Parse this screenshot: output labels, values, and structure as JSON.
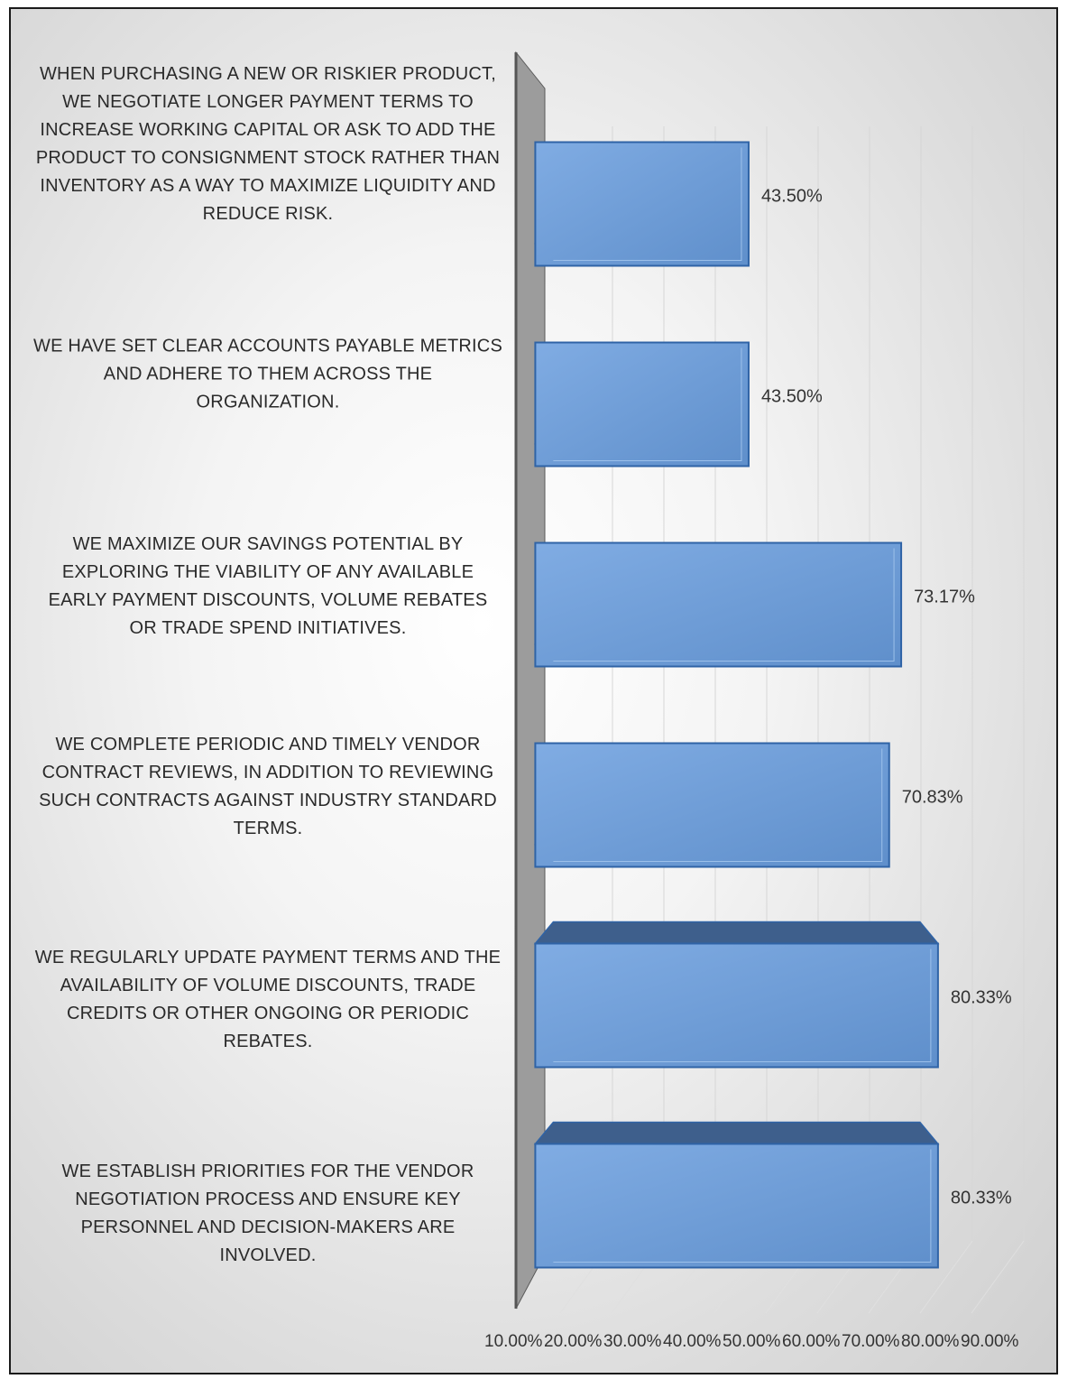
{
  "chart_data": {
    "type": "bar",
    "orientation": "horizontal",
    "three_d": true,
    "categories": [
      "When purchasing a new or riskier product, we negotiate longer payment terms to increase working capital or ask to add the product to consignment stock rather than inventory as a way to maximize liquidity and reduce risk.",
      "We have set clear accounts payable metrics and adhere to them across the organization.",
      "We maximize our savings potential by exploring the viability of any available early payment discounts, volume rebates or trade spend initiatives.",
      "We complete periodic and timely vendor contract reviews, in addition to reviewing such contracts against industry standard terms.",
      "We regularly update payment terms and the availability of volume discounts, trade credits or other ongoing or periodic rebates.",
      "We establish priorities for the vendor negotiation process and ensure key personnel and decision-makers are involved."
    ],
    "values": [
      43.5,
      43.5,
      73.17,
      70.83,
      80.33,
      80.33
    ],
    "value_labels": [
      "43.50%",
      "43.50%",
      "73.17%",
      "70.83%",
      "80.33%",
      "80.33%"
    ],
    "xticks": [
      "10.00%",
      "20.00%",
      "30.00%",
      "40.00%",
      "50.00%",
      "60.00%",
      "70.00%",
      "80.00%",
      "90.00%"
    ],
    "xlim": [
      10,
      90
    ],
    "grid": true,
    "colors": {
      "bar_front": "#6f9fd8",
      "bar_top": "#3e5f8c",
      "bar_edge": "#2f63a6",
      "wall": "#9c9c9c"
    }
  }
}
